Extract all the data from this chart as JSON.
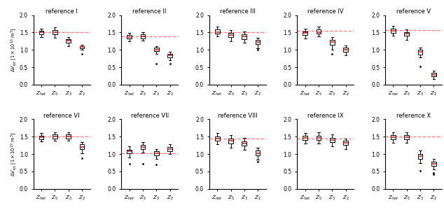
{
  "titles": [
    "reference I",
    "reference II",
    "reference III",
    "reference IV",
    "reference V",
    "reference VI",
    "reference VII",
    "reference VIII",
    "reference IX",
    "reference X"
  ],
  "x_labels": [
    "$Z_{het}$",
    "$Z_5$",
    "$Z_3$",
    "$Z_2$"
  ],
  "ylim": [
    0.0,
    2.0
  ],
  "yticks": [
    0.0,
    0.5,
    1.0,
    1.5,
    2.0
  ],
  "ylabel_row0": "$\\Delta V_{tot}$ [$1 \\times 10^{10}$ m$^3$]",
  "ylabel_row1": "$\\Delta V_{tot}$ [$1 \\times 10^{10}$ m$^3$]",
  "dashed_line_color": "#ff7777",
  "median_color": "#cc2222",
  "box_facecolor": "white",
  "figsize": [
    6.34,
    3.1
  ],
  "dpi": 100,
  "plots": [
    {
      "ref_value": 1.5,
      "boxes": [
        {
          "med": 1.5,
          "q1": 1.44,
          "q3": 1.56,
          "whislo": 1.36,
          "whishi": 1.62,
          "fliers": []
        },
        {
          "med": 1.5,
          "q1": 1.44,
          "q3": 1.57,
          "whislo": 1.34,
          "whishi": 1.65,
          "fliers": []
        },
        {
          "med": 1.26,
          "q1": 1.2,
          "q3": 1.31,
          "whislo": 1.1,
          "whishi": 1.37,
          "fliers": []
        },
        {
          "med": 1.08,
          "q1": 1.04,
          "q3": 1.11,
          "whislo": 1.0,
          "whishi": 1.14,
          "fliers": [
            0.88
          ]
        }
      ]
    },
    {
      "ref_value": 1.38,
      "boxes": [
        {
          "med": 1.37,
          "q1": 1.32,
          "q3": 1.43,
          "whislo": 1.25,
          "whishi": 1.49,
          "fliers": []
        },
        {
          "med": 1.39,
          "q1": 1.33,
          "q3": 1.45,
          "whislo": 1.26,
          "whishi": 1.51,
          "fliers": []
        },
        {
          "med": 1.01,
          "q1": 0.96,
          "q3": 1.06,
          "whislo": 0.88,
          "whishi": 1.11,
          "fliers": [
            0.6
          ]
        },
        {
          "med": 0.84,
          "q1": 0.79,
          "q3": 0.89,
          "whislo": 0.7,
          "whishi": 0.94,
          "fliers": [
            0.6
          ]
        }
      ]
    },
    {
      "ref_value": 1.5,
      "boxes": [
        {
          "med": 1.52,
          "q1": 1.46,
          "q3": 1.59,
          "whislo": 1.38,
          "whishi": 1.67,
          "fliers": []
        },
        {
          "med": 1.42,
          "q1": 1.36,
          "q3": 1.49,
          "whislo": 1.25,
          "whishi": 1.57,
          "fliers": []
        },
        {
          "med": 1.38,
          "q1": 1.31,
          "q3": 1.45,
          "whislo": 1.2,
          "whishi": 1.53,
          "fliers": []
        },
        {
          "med": 1.22,
          "q1": 1.16,
          "q3": 1.28,
          "whislo": 1.05,
          "whishi": 1.34,
          "fliers": [
            1.0
          ]
        }
      ]
    },
    {
      "ref_value": 1.55,
      "boxes": [
        {
          "med": 1.48,
          "q1": 1.42,
          "q3": 1.54,
          "whislo": 1.33,
          "whishi": 1.62,
          "fliers": []
        },
        {
          "med": 1.52,
          "q1": 1.46,
          "q3": 1.59,
          "whislo": 1.38,
          "whishi": 1.67,
          "fliers": []
        },
        {
          "med": 1.22,
          "q1": 1.15,
          "q3": 1.29,
          "whislo": 1.0,
          "whishi": 1.37,
          "fliers": [
            0.88
          ]
        },
        {
          "med": 1.0,
          "q1": 0.94,
          "q3": 1.06,
          "whislo": 0.84,
          "whishi": 1.12,
          "fliers": []
        }
      ]
    },
    {
      "ref_value": 1.58,
      "boxes": [
        {
          "med": 1.55,
          "q1": 1.49,
          "q3": 1.61,
          "whislo": 1.41,
          "whishi": 1.69,
          "fliers": []
        },
        {
          "med": 1.46,
          "q1": 1.4,
          "q3": 1.52,
          "whislo": 1.29,
          "whishi": 1.6,
          "fliers": []
        },
        {
          "med": 0.94,
          "q1": 0.87,
          "q3": 1.0,
          "whislo": 0.78,
          "whishi": 1.06,
          "fliers": [
            0.52
          ]
        },
        {
          "med": 0.28,
          "q1": 0.23,
          "q3": 0.34,
          "whislo": 0.15,
          "whishi": 0.4,
          "fliers": []
        }
      ]
    },
    {
      "ref_value": 1.5,
      "boxes": [
        {
          "med": 1.48,
          "q1": 1.43,
          "q3": 1.53,
          "whislo": 1.36,
          "whishi": 1.6,
          "fliers": []
        },
        {
          "med": 1.5,
          "q1": 1.44,
          "q3": 1.56,
          "whislo": 1.38,
          "whishi": 1.62,
          "fliers": []
        },
        {
          "med": 1.5,
          "q1": 1.44,
          "q3": 1.56,
          "whislo": 1.38,
          "whishi": 1.63,
          "fliers": []
        },
        {
          "med": 1.21,
          "q1": 1.14,
          "q3": 1.28,
          "whislo": 1.02,
          "whishi": 1.35,
          "fliers": [
            0.88
          ]
        }
      ]
    },
    {
      "ref_value": 1.02,
      "boxes": [
        {
          "med": 1.08,
          "q1": 1.02,
          "q3": 1.13,
          "whislo": 0.9,
          "whishi": 1.22,
          "fliers": [
            0.72
          ]
        },
        {
          "med": 1.2,
          "q1": 1.14,
          "q3": 1.27,
          "whislo": 1.05,
          "whishi": 1.35,
          "fliers": [
            0.72
          ]
        },
        {
          "med": 1.03,
          "q1": 0.97,
          "q3": 1.09,
          "whislo": 0.86,
          "whishi": 1.15,
          "fliers": [
            0.7
          ]
        },
        {
          "med": 1.15,
          "q1": 1.09,
          "q3": 1.21,
          "whislo": 1.0,
          "whishi": 1.28,
          "fliers": []
        }
      ]
    },
    {
      "ref_value": 1.45,
      "boxes": [
        {
          "med": 1.45,
          "q1": 1.39,
          "q3": 1.51,
          "whislo": 1.28,
          "whishi": 1.6,
          "fliers": []
        },
        {
          "med": 1.38,
          "q1": 1.31,
          "q3": 1.45,
          "whislo": 1.18,
          "whishi": 1.54,
          "fliers": []
        },
        {
          "med": 1.3,
          "q1": 1.24,
          "q3": 1.37,
          "whislo": 1.12,
          "whishi": 1.46,
          "fliers": []
        },
        {
          "med": 1.03,
          "q1": 0.97,
          "q3": 1.1,
          "whislo": 0.85,
          "whishi": 1.18,
          "fliers": [
            0.78
          ]
        }
      ]
    },
    {
      "ref_value": 1.45,
      "boxes": [
        {
          "med": 1.46,
          "q1": 1.4,
          "q3": 1.52,
          "whislo": 1.31,
          "whishi": 1.6,
          "fliers": []
        },
        {
          "med": 1.46,
          "q1": 1.4,
          "q3": 1.53,
          "whislo": 1.3,
          "whishi": 1.62,
          "fliers": []
        },
        {
          "med": 1.4,
          "q1": 1.34,
          "q3": 1.47,
          "whislo": 1.22,
          "whishi": 1.56,
          "fliers": []
        },
        {
          "med": 1.32,
          "q1": 1.26,
          "q3": 1.38,
          "whislo": 1.15,
          "whishi": 1.45,
          "fliers": []
        }
      ]
    },
    {
      "ref_value": 1.5,
      "boxes": [
        {
          "med": 1.48,
          "q1": 1.42,
          "q3": 1.55,
          "whislo": 1.32,
          "whishi": 1.62,
          "fliers": []
        },
        {
          "med": 1.48,
          "q1": 1.42,
          "q3": 1.55,
          "whislo": 1.32,
          "whishi": 1.62,
          "fliers": []
        },
        {
          "med": 0.94,
          "q1": 0.87,
          "q3": 1.01,
          "whislo": 0.75,
          "whishi": 1.1,
          "fliers": [
            0.52
          ]
        },
        {
          "med": 0.72,
          "q1": 0.65,
          "q3": 0.79,
          "whislo": 0.55,
          "whishi": 0.86,
          "fliers": [
            0.45,
            0.42
          ]
        }
      ]
    }
  ]
}
